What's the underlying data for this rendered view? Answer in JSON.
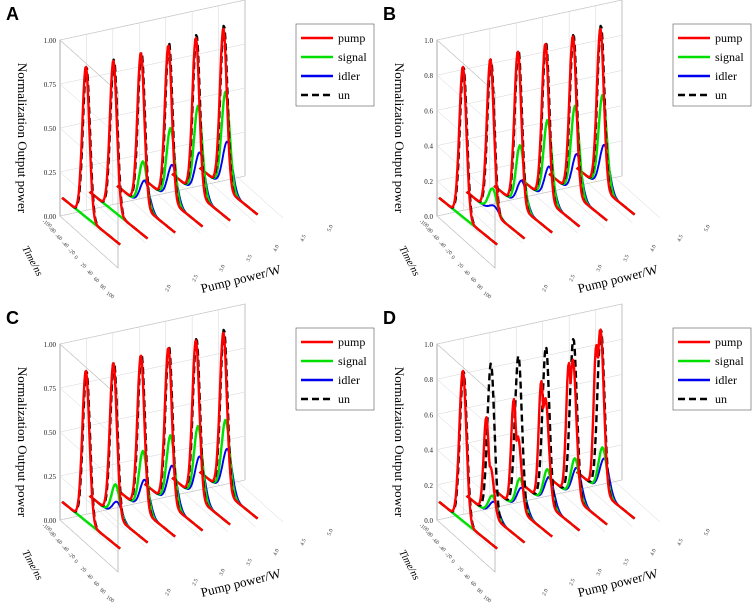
{
  "chart_data": [
    {
      "panel": "A",
      "type": "line",
      "ylabel": "Normalization Output power",
      "xlabel": "Pump power/W",
      "tlabel": "Time/ns",
      "yticks": [
        "0.00",
        "0.25",
        "0.50",
        "0.75",
        "1.00"
      ],
      "ylim": [
        0,
        1
      ],
      "time_ticks": [
        "-100",
        "-80",
        "-60",
        "-40",
        "-20",
        "0",
        "20",
        "40",
        "60",
        "80",
        "100"
      ],
      "pump_ticks": [
        "2.0",
        "2.5",
        "3.0",
        "3.5",
        "4.0",
        "4.5",
        "5.0"
      ],
      "legend": [
        "pump",
        "signal",
        "idler",
        "un"
      ],
      "series": [
        {
          "name": "pump",
          "values": [
            0.93,
            0.93,
            0.94,
            0.95,
            0.96,
            0.98
          ]
        },
        {
          "name": "signal",
          "values": [
            0.0,
            0.0,
            0.28,
            0.45,
            0.55,
            0.6
          ]
        },
        {
          "name": "idler",
          "values": [
            0.0,
            0.0,
            0.17,
            0.23,
            0.27,
            0.3
          ]
        },
        {
          "name": "un",
          "values": [
            0.93,
            0.94,
            0.95,
            0.97,
            0.98,
            1.0
          ]
        }
      ]
    },
    {
      "panel": "B",
      "type": "line",
      "ylabel": "Normalization Output power",
      "xlabel": "Pump power/W",
      "tlabel": "Time/ns",
      "yticks": [
        "0.0",
        "0.2",
        "0.4",
        "0.6",
        "0.8",
        "1.0"
      ],
      "ylim": [
        0,
        1
      ],
      "time_ticks": [
        "-100",
        "-80",
        "-60",
        "-40",
        "-20",
        "0",
        "20",
        "40",
        "60",
        "80",
        "100"
      ],
      "pump_ticks": [
        "2.0",
        "2.5",
        "3.0",
        "3.5",
        "4.0",
        "4.5",
        "5.0"
      ],
      "legend": [
        "pump",
        "signal",
        "idler",
        "un"
      ],
      "series": [
        {
          "name": "pump",
          "values": [
            0.93,
            0.94,
            0.95,
            0.96,
            0.97,
            0.98
          ]
        },
        {
          "name": "signal",
          "values": [
            0.0,
            0.15,
            0.38,
            0.5,
            0.55,
            0.58
          ]
        },
        {
          "name": "idler",
          "values": [
            0.0,
            0.05,
            0.17,
            0.22,
            0.26,
            0.28
          ]
        },
        {
          "name": "un",
          "values": [
            0.93,
            0.94,
            0.96,
            0.97,
            0.98,
            1.0
          ]
        }
      ]
    },
    {
      "panel": "C",
      "type": "line",
      "ylabel": "Normalization Output power",
      "xlabel": "Pump power/W",
      "tlabel": "Time/ns",
      "yticks": [
        "0.00",
        "0.25",
        "0.50",
        "0.75",
        "1.00"
      ],
      "ylim": [
        0,
        1
      ],
      "time_ticks": [
        "-100",
        "-80",
        "-60",
        "-40",
        "-20",
        "0",
        "20",
        "40",
        "60",
        "80",
        "100"
      ],
      "pump_ticks": [
        "2.0",
        "2.5",
        "3.0",
        "3.5",
        "4.0",
        "4.5",
        "5.0"
      ],
      "legend": [
        "pump",
        "signal",
        "idler",
        "un"
      ],
      "series": [
        {
          "name": "pump",
          "values": [
            0.93,
            0.94,
            0.95,
            0.96,
            0.97,
            0.98
          ]
        },
        {
          "name": "signal",
          "values": [
            0.0,
            0.2,
            0.37,
            0.43,
            0.45,
            0.45
          ]
        },
        {
          "name": "idler",
          "values": [
            0.0,
            0.1,
            0.2,
            0.25,
            0.27,
            0.28
          ]
        },
        {
          "name": "un",
          "values": [
            0.93,
            0.95,
            0.96,
            0.97,
            0.98,
            1.0
          ]
        }
      ]
    },
    {
      "panel": "D",
      "type": "line",
      "ylabel": "Normalization Output power",
      "xlabel": "Pump power/W",
      "tlabel": "Time/ns",
      "yticks": [
        "0.0",
        "0.2",
        "0.4",
        "0.6",
        "0.8",
        "1.0"
      ],
      "ylim": [
        0,
        1
      ],
      "time_ticks": [
        "-100",
        "-80",
        "-60",
        "-40",
        "-20",
        "0",
        "20",
        "40",
        "60",
        "80",
        "100"
      ],
      "pump_ticks": [
        "2.0",
        "2.5",
        "3.0",
        "3.5",
        "4.0",
        "4.5",
        "5.0"
      ],
      "legend": [
        "pump",
        "signal",
        "idler",
        "un"
      ],
      "series": [
        {
          "name": "pump",
          "values": [
            0.93,
            0.3,
            0.45,
            0.65,
            0.85,
            1.0
          ]
        },
        {
          "name": "signal",
          "values": [
            0.0,
            0.13,
            0.2,
            0.22,
            0.25,
            0.28
          ]
        },
        {
          "name": "idler",
          "values": [
            0.0,
            0.1,
            0.15,
            0.18,
            0.2,
            0.22
          ]
        },
        {
          "name": "un",
          "values": [
            0.93,
            0.94,
            0.95,
            0.97,
            0.98,
            1.0
          ]
        }
      ]
    }
  ],
  "colors": {
    "pump": "#ff0000",
    "signal": "#00e000",
    "idler": "#0000ee",
    "un": "#000000"
  }
}
